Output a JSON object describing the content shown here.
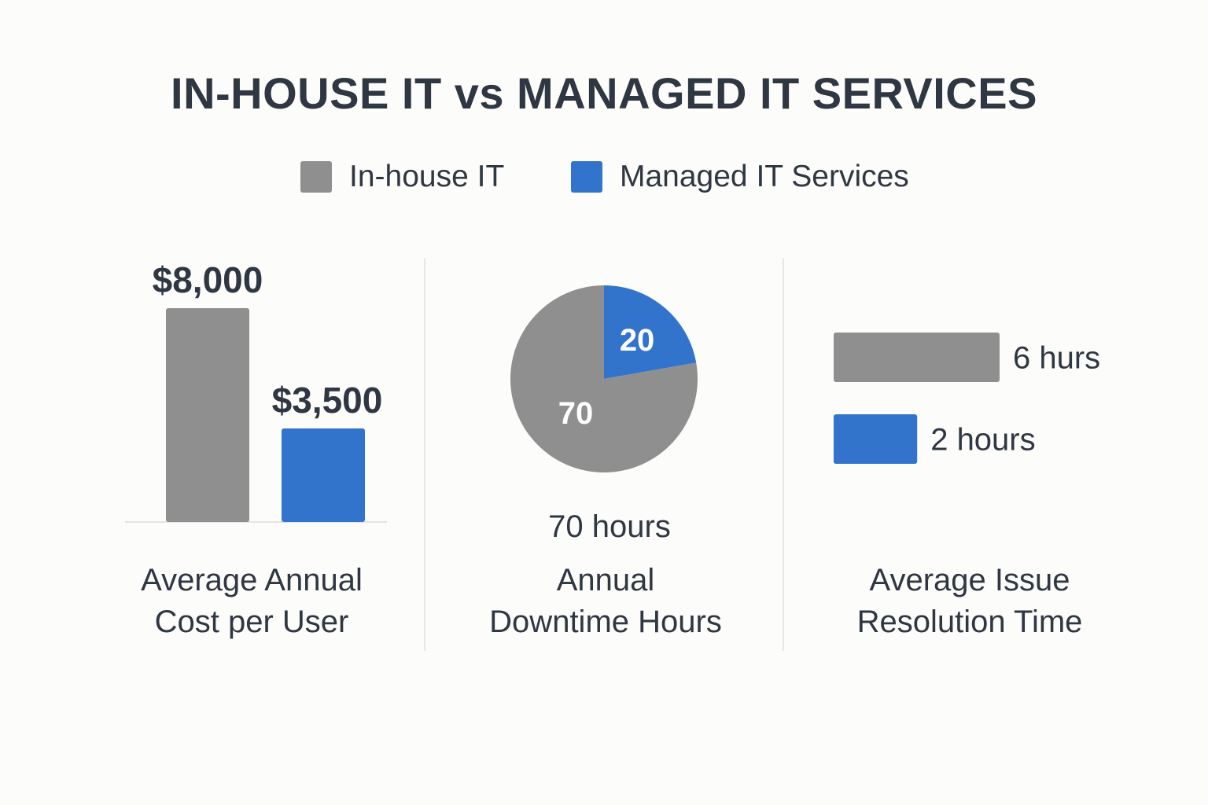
{
  "title": "IN-HOUSE IT vs MANAGED IT SERVICES",
  "legend": [
    {
      "label": "In-house IT",
      "color": "#8f8f8f"
    },
    {
      "label": "Managed IT Services",
      "color": "#3274cc"
    }
  ],
  "chart_data": [
    {
      "type": "bar",
      "title": "Average Annual Cost per User",
      "caption_lines": [
        "Average Annual",
        "Cost per User"
      ],
      "orientation": "vertical",
      "categories": [
        "In-house IT",
        "Managed IT Services"
      ],
      "values": [
        8000,
        3500
      ],
      "value_labels": [
        "$8,000",
        "$3,500"
      ],
      "colors": [
        "#8f8f8f",
        "#3274cc"
      ],
      "ylim": [
        0,
        8000
      ]
    },
    {
      "type": "pie",
      "title": "Annual Downtime Hours",
      "caption_lines": [
        "Annual",
        "Downtime Hours"
      ],
      "categories": [
        "In-house IT",
        "Managed IT Services"
      ],
      "values": [
        70,
        20
      ],
      "slice_labels": [
        "70",
        "20"
      ],
      "colors": [
        "#8f8f8f",
        "#3274cc"
      ],
      "note": "70 hours"
    },
    {
      "type": "bar",
      "title": "Average Issue Resolution Time",
      "caption_lines": [
        "Average Issue",
        "Resolution Time"
      ],
      "orientation": "horizontal",
      "categories": [
        "In-house IT",
        "Managed IT Services"
      ],
      "values": [
        6,
        2
      ],
      "value_labels": [
        "6 hurs",
        "2 hours"
      ],
      "colors": [
        "#8f8f8f",
        "#3274cc"
      ]
    }
  ]
}
